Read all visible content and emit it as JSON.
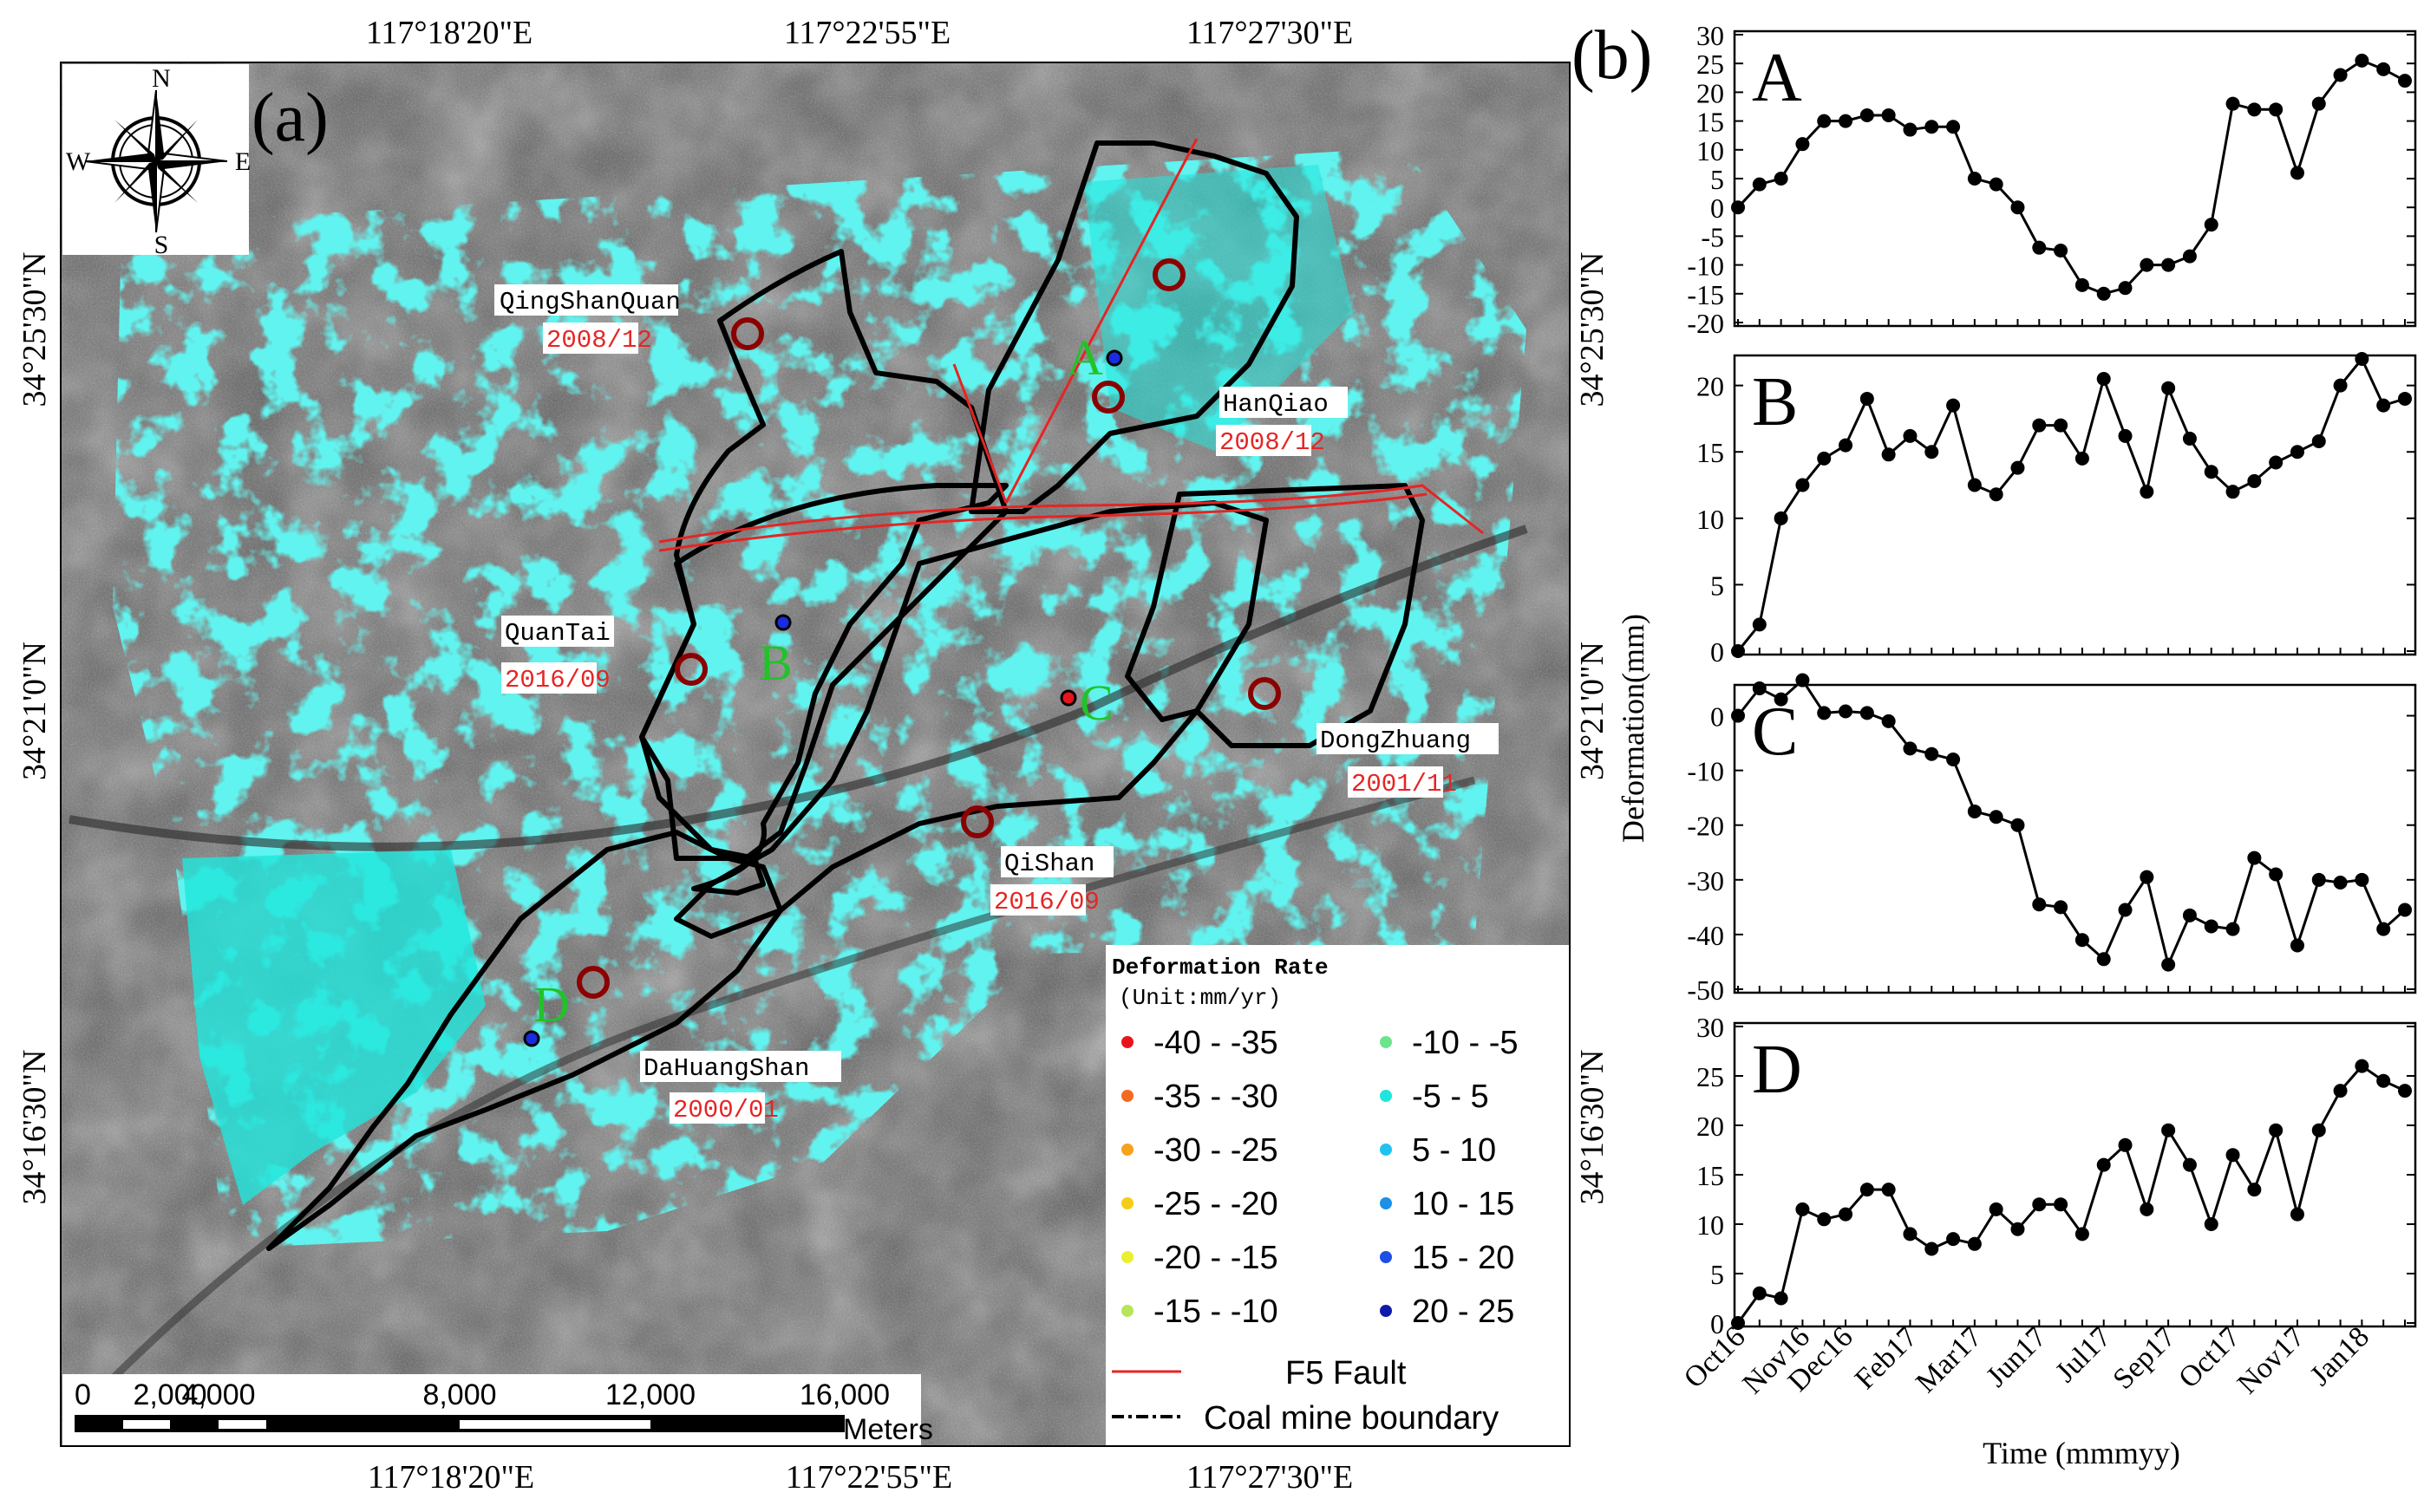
{
  "panel_a": {
    "label": "(a)",
    "top_coords": [
      "117°18'20\"E",
      "117°22'55\"E",
      "117°27'30\"E"
    ],
    "bottom_coords": [
      "117°18'20\"E",
      "117°22'55\"E",
      "117°27'30\"E"
    ],
    "left_coords": [
      "34°25'30\"N",
      "34°21'0\"N",
      "34°16'30\"N"
    ],
    "right_coords": [
      "34°25'30\"N",
      "34°21'0\"N",
      "34°16'30\"N"
    ],
    "compass": {
      "n": "N",
      "s": "S",
      "e": "E",
      "w": "W"
    },
    "mines": [
      {
        "name": "QingShanQuan",
        "date": "2008/12"
      },
      {
        "name": "HanQiao",
        "date": "2008/12"
      },
      {
        "name": "QuanTai",
        "date": "2016/09"
      },
      {
        "name": "DongZhuang",
        "date": "2001/11"
      },
      {
        "name": "QiShan",
        "date": "2016/09"
      },
      {
        "name": "DaHuangShan",
        "date": "2000/01"
      }
    ],
    "points": {
      "a": "A",
      "b": "B",
      "c": "C",
      "d": "D"
    },
    "legend": {
      "title_line1": "Deformation Rate",
      "title_line2": "(Unit:mm/yr)",
      "items": [
        {
          "label": "-40 - -35",
          "color": "#e8141c"
        },
        {
          "label": "-35 - -30",
          "color": "#f36a1e"
        },
        {
          "label": "-30 - -25",
          "color": "#f7a21c"
        },
        {
          "label": "-25 - -20",
          "color": "#f4cd19"
        },
        {
          "label": "-20 - -15",
          "color": "#eaf030"
        },
        {
          "label": "-15 - -10",
          "color": "#b5e65a"
        },
        {
          "label": "-10 - -5",
          "color": "#6be58c"
        },
        {
          "label": "-5 - 5",
          "color": "#1fe6dc"
        },
        {
          "label": "5 - 10",
          "color": "#22c2f0"
        },
        {
          "label": "10 - 15",
          "color": "#1e8fe6"
        },
        {
          "label": "15 - 20",
          "color": "#1e4fe6"
        },
        {
          "label": "20 - 25",
          "color": "#101aa8"
        }
      ],
      "fault_label": "F5 Fault",
      "boundary_label": "Coal mine boundary"
    },
    "scalebar": {
      "ticks": [
        "0",
        "2,000",
        "4,000",
        "8,000",
        "12,000",
        "16,000"
      ],
      "unit": "Meters"
    }
  },
  "panel_b": {
    "label": "(b)",
    "ylabel": "Deformation(mm)",
    "xlabel": "Time (mmmyy)",
    "xticks": [
      "Oct16",
      "Nov16",
      "Dec16",
      "Feb17",
      "Mar17",
      "Jun17",
      "Jul17",
      "Sep17",
      "Oct17",
      "Nov17",
      "Jan18"
    ]
  },
  "chart_data": [
    {
      "type": "line",
      "title": "A",
      "ylim": [
        -20,
        30
      ],
      "yticks": [
        -20,
        -15,
        -10,
        -5,
        0,
        5,
        10,
        15,
        20,
        25,
        30
      ],
      "values": [
        0,
        4,
        5,
        11,
        15,
        15,
        16,
        16,
        13.5,
        14,
        14,
        5,
        4,
        0,
        -7,
        -7.5,
        -13.5,
        -15,
        -14,
        -10,
        -10,
        -8.5,
        -3,
        18,
        17,
        17,
        6,
        18,
        23,
        25.5,
        24,
        22
      ]
    },
    {
      "type": "line",
      "title": "B",
      "ylim": [
        0,
        22
      ],
      "yticks": [
        0,
        5,
        10,
        15,
        20
      ],
      "values": [
        0,
        2,
        10,
        12.5,
        14.5,
        15.5,
        19,
        14.8,
        16.2,
        15,
        18.5,
        12.5,
        11.8,
        13.8,
        17,
        17,
        14.5,
        20.5,
        16.2,
        12,
        19.8,
        16,
        13.5,
        12,
        12.8,
        14.2,
        15,
        15.8,
        20,
        22,
        18.5,
        19
      ]
    },
    {
      "type": "line",
      "title": "C",
      "ylim": [
        -50,
        5
      ],
      "yticks": [
        -50,
        -40,
        -30,
        -20,
        -10,
        0
      ],
      "values": [
        0,
        5,
        3,
        6.5,
        0.5,
        0.8,
        0.5,
        -1,
        -6,
        -7,
        -8,
        -17.5,
        -18.5,
        -20,
        -34.5,
        -35,
        -41,
        -44.5,
        -35.5,
        -29.5,
        -45.5,
        -36.5,
        -38.5,
        -39,
        -26,
        -29,
        -42,
        -30,
        -30.5,
        -30,
        -39,
        -35.5
      ]
    },
    {
      "type": "line",
      "title": "D",
      "ylim": [
        0,
        30
      ],
      "yticks": [
        0,
        5,
        10,
        15,
        20,
        25,
        30
      ],
      "values": [
        0,
        3,
        2.5,
        11.5,
        10.5,
        11,
        13.5,
        13.5,
        9,
        7.5,
        8.5,
        8,
        11.5,
        9.5,
        12,
        12,
        9,
        16,
        18,
        11.5,
        19.5,
        16,
        10,
        17,
        13.5,
        19.5,
        11,
        19.5,
        23.5,
        26,
        24.5,
        23.5
      ]
    }
  ]
}
